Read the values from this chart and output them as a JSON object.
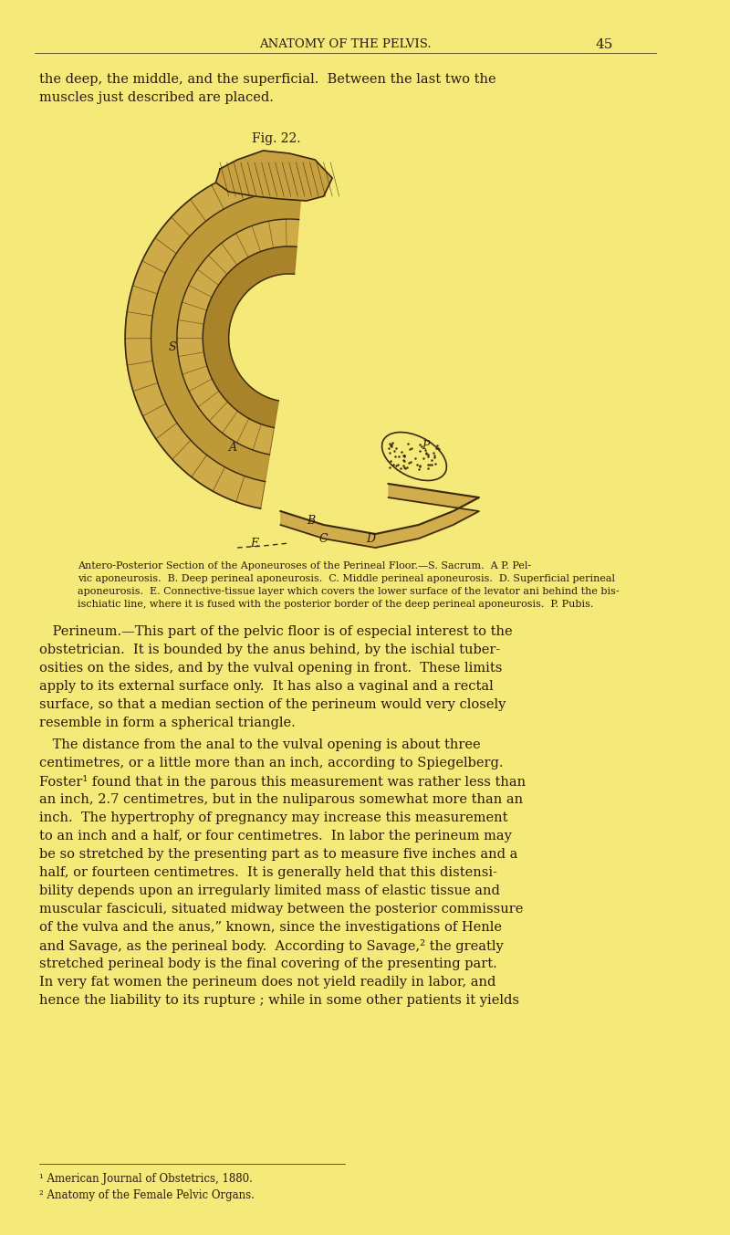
{
  "bg_color": "#f5e97a",
  "page_bg": "#f0e068",
  "header_title": "ANATOMY OF THE PELVIS.",
  "header_page": "45",
  "intro_text": "the deep, the middle, and the superficial.  Between the last two the\nmuscles just described are placed.",
  "fig_label": "Fig. 22.",
  "caption": "Antero-Posterior Section of the Aponeuroses of the Perineal Floor.—S. Sacrum.  A P. Pel-\nvic aponeurosis.  B. Deep perineal aponeurosis.  C. Middle perineal aponeurosis.  D. Superficial perineal\naponeurosis.  E. Connective-tissue layer which covers the lower surface of the levator ani behind the bis-\nischiatic line, where it is fused with the posterior border of the deep perineal aponeurosis.  P. Pubis.",
  "body_paragraphs": [
    " Perineum.—This part of the pelvic floor is of especial interest to the\nobstetrician.  It is bounded by the anus behind, by the ischial tuber-\nosities on the sides, and by the vulval opening in front.  These limits\napply to its external surface only.  It has also a vaginal and a rectal\nsurface, so that a median section of the perineum would very closely\nresemble in form a spherical triangle.",
    " The distance from the anal to the vulval opening is about three\ncentimetres, or a little more than an inch, according to Spiegelberg.\nFoster¹ found that in the parous this measurement was rather less than\nan inch, 2.7 centimetres, but in the nuliparous somewhat more than an\ninch.  The hypertrophy of pregnancy may increase this measurement\nto an inch and a half, or four centimetres.  In labor the perineum may\nbe so stretched by the presenting part as to measure five inches and a\nhalf, or fourteen centimetres.  It is generally held that this distensi-\nbility depends upon an irregularly limited mass of elastic tissue and\nmuscular fasciculi, situated midway between the posterior commissure\nof the vulva and the anus,” known, since the investigations of Henle\nand Savage, as the perineal body.  According to Savage,² the greatly\nstretched perineal body is the final covering of the presenting part.\nIn very fat women the perineum does not yield readily in labor, and\nhence the liability to its rupture ; while in some other patients it yields"
  ],
  "footnotes": [
    "¹ American Journal of Obstetrics, 1880.",
    "² Anatomy of the Female Pelvic Organs."
  ],
  "text_color": "#2a1a0a",
  "header_color": "#2a1a0a"
}
